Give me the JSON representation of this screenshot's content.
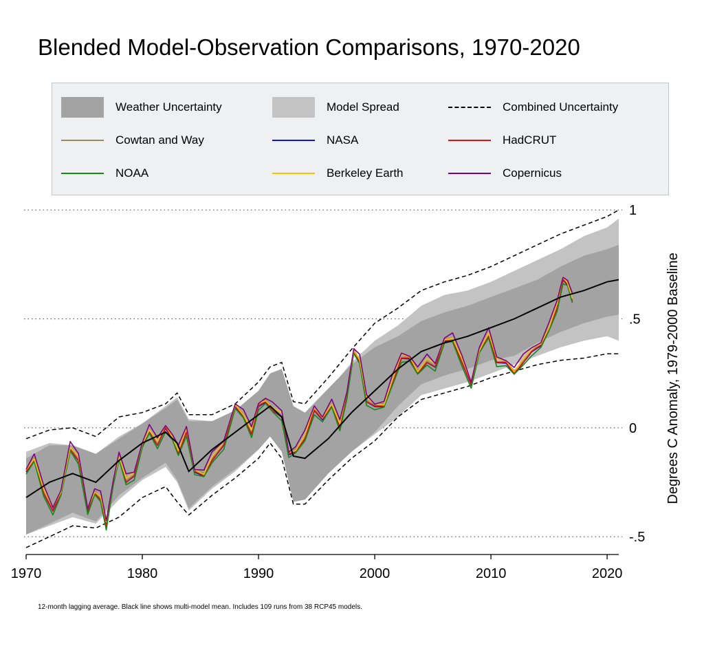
{
  "chart_data": {
    "type": "line",
    "title": "Blended Model-Observation Comparisons, 1970-2020",
    "xlabel": "",
    "ylabel": "Degrees C Anomaly, 1979-2000 Baseline",
    "footnote": "12-month lagging average. Black line shows multi-model mean. Includes 109 runs from 38 RCP45 models.",
    "xlim": [
      1970,
      2021
    ],
    "ylim": [
      -0.55,
      1.01
    ],
    "x_ticks": [
      "1970",
      "1980",
      "1990",
      "2000",
      "2010",
      "2020"
    ],
    "y_ticks": [
      {
        "value": 1,
        "label": "1"
      },
      {
        "value": 0.5,
        "label": ".5"
      },
      {
        "value": 0,
        "label": "0"
      },
      {
        "value": -0.5,
        "label": "-.5"
      }
    ],
    "grid": "dotted horizontal at y ticks",
    "legend_position": "top",
    "legend": [
      {
        "label": "Weather Uncertainty",
        "kind": "band",
        "color": "#a3a3a3"
      },
      {
        "label": "Model Spread",
        "kind": "band",
        "color": "#c3c3c3"
      },
      {
        "label": "Combined Uncertainty",
        "kind": "dashed",
        "color": "#000000"
      },
      {
        "label": "Cowtan and Way",
        "kind": "line",
        "color": "#9c8a5e"
      },
      {
        "label": "NASA",
        "kind": "line",
        "color": "#1010e0"
      },
      {
        "label": "HadCRUT",
        "kind": "line",
        "color": "#e01010"
      },
      {
        "label": "NOAA",
        "kind": "line",
        "color": "#138a13"
      },
      {
        "label": "Berkeley Earth",
        "kind": "line",
        "color": "#f5c400"
      },
      {
        "label": "Copernicus",
        "kind": "line",
        "color": "#800080"
      }
    ],
    "model_mean": {
      "x": [
        1970,
        1972,
        1974,
        1976,
        1978,
        1980,
        1982,
        1983,
        1984,
        1986,
        1988,
        1990,
        1991,
        1992,
        1993,
        1994,
        1996,
        1998,
        2000,
        2002,
        2004,
        2006,
        2008,
        2010,
        2012,
        2014,
        2016,
        2018,
        2020,
        2021
      ],
      "y": [
        -0.32,
        -0.25,
        -0.21,
        -0.25,
        -0.15,
        -0.07,
        -0.02,
        -0.07,
        -0.2,
        -0.1,
        -0.02,
        0.06,
        0.1,
        0.05,
        -0.13,
        -0.14,
        -0.05,
        0.07,
        0.17,
        0.27,
        0.35,
        0.39,
        0.42,
        0.46,
        0.5,
        0.55,
        0.6,
        0.63,
        0.67,
        0.68
      ]
    },
    "model_spread": {
      "x": [
        1970,
        1972,
        1974,
        1976,
        1978,
        1980,
        1982,
        1983,
        1984,
        1986,
        1988,
        1990,
        1991,
        1992,
        1993,
        1994,
        1996,
        1998,
        2000,
        2002,
        2004,
        2006,
        2008,
        2010,
        2012,
        2014,
        2016,
        2018,
        2020,
        2021
      ],
      "upper": [
        -0.11,
        -0.07,
        -0.08,
        -0.12,
        -0.04,
        0.02,
        0.1,
        0.14,
        0.04,
        0.03,
        0.08,
        0.16,
        0.24,
        0.26,
        0.1,
        0.06,
        0.17,
        0.3,
        0.4,
        0.47,
        0.56,
        0.61,
        0.63,
        0.67,
        0.72,
        0.77,
        0.82,
        0.88,
        0.92,
        0.96
      ],
      "lower": [
        -0.49,
        -0.45,
        -0.41,
        -0.44,
        -0.33,
        -0.24,
        -0.18,
        -0.25,
        -0.38,
        -0.28,
        -0.2,
        -0.1,
        -0.03,
        -0.1,
        -0.33,
        -0.33,
        -0.21,
        -0.11,
        -0.03,
        0.05,
        0.15,
        0.18,
        0.21,
        0.25,
        0.29,
        0.33,
        0.37,
        0.4,
        0.42,
        0.4
      ]
    },
    "weather_uncertainty": {
      "x": [
        1970,
        1972,
        1974,
        1976,
        1978,
        1980,
        1982,
        1983,
        1984,
        1986,
        1988,
        1990,
        1991,
        1992,
        1993,
        1994,
        1996,
        1998,
        2000,
        2002,
        2004,
        2006,
        2008,
        2010,
        2012,
        2014,
        2016,
        2018,
        2020,
        2021
      ],
      "upper": [
        -0.14,
        -0.08,
        -0.08,
        -0.12,
        -0.05,
        0.02,
        0.09,
        0.13,
        0.03,
        0.03,
        0.08,
        0.17,
        0.25,
        0.27,
        0.1,
        0.07,
        0.18,
        0.29,
        0.37,
        0.42,
        0.49,
        0.53,
        0.56,
        0.6,
        0.64,
        0.68,
        0.74,
        0.79,
        0.82,
        0.84
      ],
      "lower": [
        -0.49,
        -0.44,
        -0.39,
        -0.43,
        -0.31,
        -0.23,
        -0.16,
        -0.24,
        -0.37,
        -0.27,
        -0.19,
        -0.1,
        -0.04,
        -0.11,
        -0.34,
        -0.33,
        -0.21,
        -0.11,
        -0.02,
        0.1,
        0.2,
        0.24,
        0.27,
        0.31,
        0.33,
        0.39,
        0.44,
        0.48,
        0.51,
        0.52
      ]
    },
    "combined_uncertainty": {
      "x": [
        1970,
        1972,
        1974,
        1976,
        1978,
        1980,
        1982,
        1983,
        1984,
        1986,
        1988,
        1990,
        1991,
        1992,
        1993,
        1994,
        1996,
        1998,
        2000,
        2002,
        2004,
        2006,
        2008,
        2010,
        2012,
        2014,
        2016,
        2018,
        2020,
        2021
      ],
      "upper": [
        -0.05,
        -0.01,
        0.0,
        -0.04,
        0.05,
        0.07,
        0.11,
        0.16,
        0.06,
        0.06,
        0.11,
        0.21,
        0.28,
        0.3,
        0.12,
        0.11,
        0.23,
        0.36,
        0.48,
        0.55,
        0.63,
        0.67,
        0.7,
        0.74,
        0.79,
        0.84,
        0.89,
        0.93,
        0.97,
        1.0
      ],
      "lower": [
        -0.55,
        -0.5,
        -0.45,
        -0.46,
        -0.41,
        -0.32,
        -0.27,
        -0.34,
        -0.4,
        -0.31,
        -0.23,
        -0.14,
        -0.07,
        -0.14,
        -0.35,
        -0.35,
        -0.24,
        -0.14,
        -0.06,
        0.05,
        0.13,
        0.16,
        0.19,
        0.23,
        0.26,
        0.29,
        0.31,
        0.32,
        0.34,
        0.34
      ]
    },
    "observed_composite": {
      "x": [
        1970,
        1970.7,
        1971.5,
        1972.3,
        1973,
        1973.8,
        1974.5,
        1975.3,
        1975.9,
        1976.4,
        1976.9,
        1977.5,
        1978.0,
        1978.6,
        1979.3,
        1980,
        1980.6,
        1981.3,
        1982,
        1982.6,
        1983.1,
        1983.8,
        1984.5,
        1985.3,
        1986,
        1987,
        1988,
        1988.7,
        1989.4,
        1990,
        1990.6,
        1991.2,
        1992,
        1992.6,
        1993.2,
        1994,
        1994.8,
        1995.5,
        1996.3,
        1997,
        1997.6,
        1998.2,
        1998.7,
        1999.3,
        2000,
        2000.8,
        2001.5,
        2002.3,
        2003,
        2003.7,
        2004.5,
        2005.2,
        2006,
        2006.7,
        2007.5,
        2008.3,
        2009,
        2009.8,
        2010.5,
        2011.3,
        2012,
        2012.8,
        2013.5,
        2014.3,
        2015,
        2015.7,
        2016.2,
        2016.6,
        2017.0
      ],
      "y": [
        -0.2,
        -0.15,
        -0.3,
        -0.38,
        -0.3,
        -0.1,
        -0.15,
        -0.38,
        -0.3,
        -0.33,
        -0.45,
        -0.25,
        -0.14,
        -0.25,
        -0.22,
        -0.08,
        -0.02,
        -0.08,
        0.0,
        -0.05,
        -0.12,
        -0.02,
        -0.2,
        -0.22,
        -0.15,
        -0.08,
        0.1,
        0.05,
        -0.03,
        0.1,
        0.12,
        0.08,
        0.05,
        -0.12,
        -0.11,
        -0.05,
        0.08,
        0.04,
        0.1,
        0.0,
        0.15,
        0.35,
        0.3,
        0.12,
        0.1,
        0.1,
        0.2,
        0.32,
        0.32,
        0.25,
        0.3,
        0.28,
        0.4,
        0.4,
        0.3,
        0.2,
        0.35,
        0.42,
        0.3,
        0.3,
        0.25,
        0.3,
        0.35,
        0.38,
        0.45,
        0.55,
        0.68,
        0.66,
        0.58
      ]
    }
  }
}
